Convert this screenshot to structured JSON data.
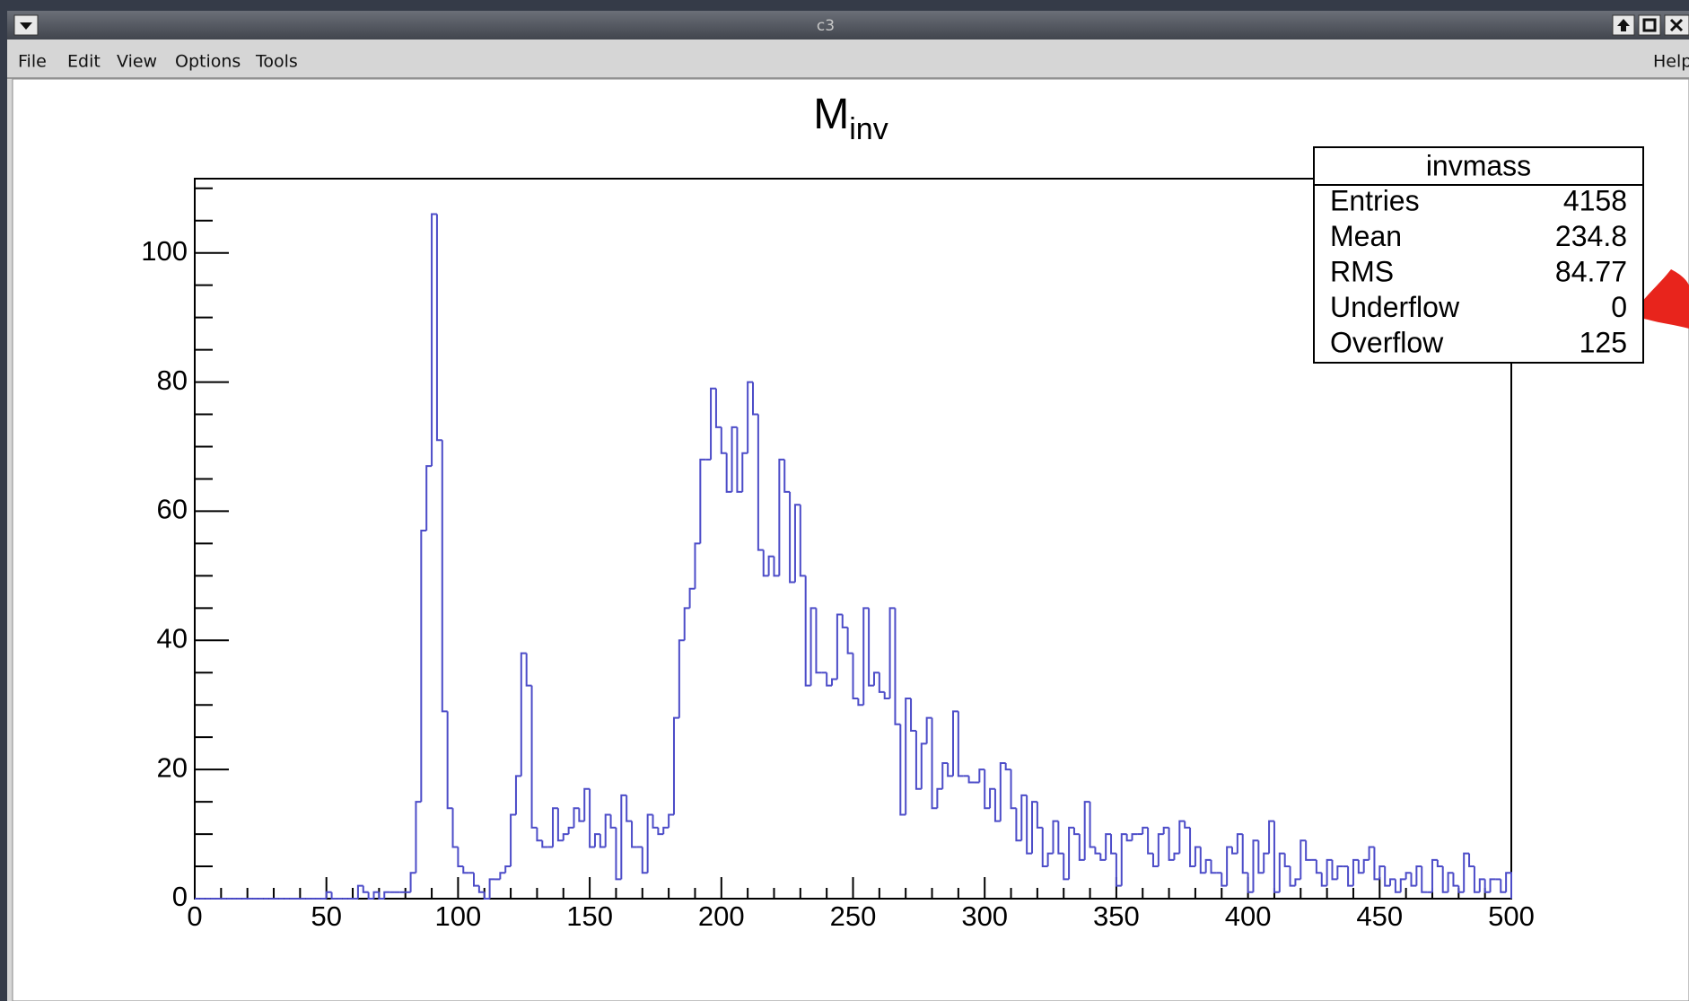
{
  "window": {
    "title": "c3",
    "menu": [
      "File",
      "Edit",
      "View",
      "Options",
      "Tools"
    ],
    "help": "Help"
  },
  "stats_box": {
    "title": "invmass",
    "rows": [
      {
        "label": "Entries",
        "value": 4158
      },
      {
        "label": "Mean",
        "value": 234.8
      },
      {
        "label": "RMS",
        "value": 84.77
      },
      {
        "label": "Underflow",
        "value": 0
      },
      {
        "label": "Overflow",
        "value": 125
      }
    ]
  },
  "chart_data": {
    "type": "histogram",
    "title": "M",
    "title_subscript": "inv",
    "color": "#4c4cc8",
    "bins": [
      0,
      2,
      4,
      6,
      8,
      10,
      12,
      14,
      16,
      18,
      20,
      22,
      24,
      26,
      28,
      30,
      32,
      34,
      36,
      38,
      40,
      42,
      44,
      46,
      48,
      50,
      52,
      54,
      56,
      58,
      60,
      62,
      64,
      66,
      68,
      70,
      72,
      74,
      76,
      78,
      80,
      82,
      84,
      86,
      88,
      90,
      92,
      94,
      96,
      98,
      100,
      102,
      104,
      106,
      108,
      110,
      112,
      114,
      116,
      118,
      120,
      122,
      124,
      126,
      128,
      130,
      132,
      134,
      136,
      138,
      140,
      142,
      144,
      146,
      148,
      150,
      152,
      154,
      156,
      158,
      160,
      162,
      164,
      166,
      168,
      170,
      172,
      174,
      176,
      178,
      180,
      182,
      184,
      186,
      188,
      190,
      192,
      194,
      196,
      198,
      200,
      202,
      204,
      206,
      208,
      210,
      212,
      214,
      216,
      218,
      220,
      222,
      224,
      226,
      228,
      230,
      232,
      234,
      236,
      238,
      240,
      242,
      244,
      246,
      248,
      250,
      252,
      254,
      256,
      258,
      260,
      262,
      264,
      266,
      268,
      270,
      272,
      274,
      276,
      278,
      280,
      282,
      284,
      286,
      288,
      290,
      292,
      294,
      296,
      298,
      300,
      302,
      304,
      306,
      308,
      310,
      312,
      314,
      316,
      318,
      320,
      322,
      324,
      326,
      328,
      330,
      332,
      334,
      336,
      338,
      340,
      342,
      344,
      346,
      348,
      350,
      352,
      354,
      356,
      358,
      360,
      362,
      364,
      366,
      368,
      370,
      372,
      374,
      376,
      378,
      380,
      382,
      384,
      386,
      388,
      390,
      392,
      394,
      396,
      398,
      400,
      402,
      404,
      406,
      408,
      410,
      412,
      414,
      416,
      418,
      420,
      422,
      424,
      426,
      428,
      430,
      432,
      434,
      436,
      438,
      440,
      442,
      444,
      446,
      448,
      450,
      452,
      454,
      456,
      458,
      460,
      462,
      464,
      466,
      468,
      470,
      472,
      474,
      476,
      478,
      480,
      482,
      484,
      486,
      488,
      490,
      492,
      494,
      496,
      498,
      500
    ],
    "counts": [
      0,
      0,
      0,
      0,
      0,
      0,
      0,
      0,
      0,
      0,
      0,
      0,
      0,
      0,
      0,
      0,
      0,
      0,
      0,
      0,
      0,
      0,
      0,
      0,
      0,
      1,
      0,
      0,
      0,
      0,
      0,
      2,
      1,
      0,
      1,
      0,
      1,
      1,
      1,
      1,
      1,
      4,
      15,
      57,
      67,
      106,
      71,
      29,
      14,
      8,
      5,
      4,
      4,
      2,
      1,
      0,
      3,
      3,
      4,
      5,
      13,
      19,
      38,
      33,
      11,
      9,
      8,
      8,
      14,
      9,
      10,
      11,
      14,
      12,
      17,
      8,
      10,
      8,
      13,
      11,
      3,
      16,
      12,
      8,
      8,
      4,
      13,
      11,
      10,
      11,
      13,
      28,
      40,
      45,
      48,
      55,
      68,
      68,
      79,
      73,
      69,
      63,
      73,
      63,
      69,
      80,
      75,
      54,
      50,
      53,
      50,
      68,
      63,
      49,
      61,
      50,
      33,
      45,
      35,
      35,
      33,
      34,
      44,
      42,
      38,
      31,
      30,
      45,
      33,
      35,
      32,
      31,
      45,
      27,
      13,
      31,
      26,
      17,
      24,
      28,
      14,
      17,
      21,
      19,
      29,
      19,
      19,
      18,
      18,
      20,
      14,
      17,
      12,
      21,
      20,
      14,
      9,
      16,
      7,
      15,
      11,
      5,
      7,
      12,
      7,
      3,
      11,
      10,
      6,
      15,
      8,
      7,
      6,
      10,
      7,
      2,
      10,
      9,
      10,
      10,
      11,
      7,
      5,
      10,
      11,
      6,
      7,
      12,
      11,
      5,
      8,
      4,
      6,
      4,
      4,
      2,
      8,
      7,
      10,
      4,
      1,
      9,
      4,
      7,
      12,
      1,
      7,
      5,
      2,
      3,
      9,
      6,
      6,
      4,
      2,
      6,
      3,
      5,
      5,
      2,
      6,
      4,
      6,
      8,
      3,
      5,
      2,
      3,
      1,
      3,
      4,
      2,
      5,
      1,
      1,
      6,
      5,
      1,
      4,
      2,
      1,
      7,
      5,
      1,
      3,
      1,
      3,
      3,
      1,
      4
    ],
    "xlim": [
      0,
      500
    ],
    "xticks": [
      0,
      50,
      100,
      150,
      200,
      250,
      300,
      350,
      400,
      450,
      500
    ],
    "ylim": [
      0,
      111.5
    ],
    "yticks": [
      0,
      20,
      40,
      60,
      80,
      100
    ]
  }
}
